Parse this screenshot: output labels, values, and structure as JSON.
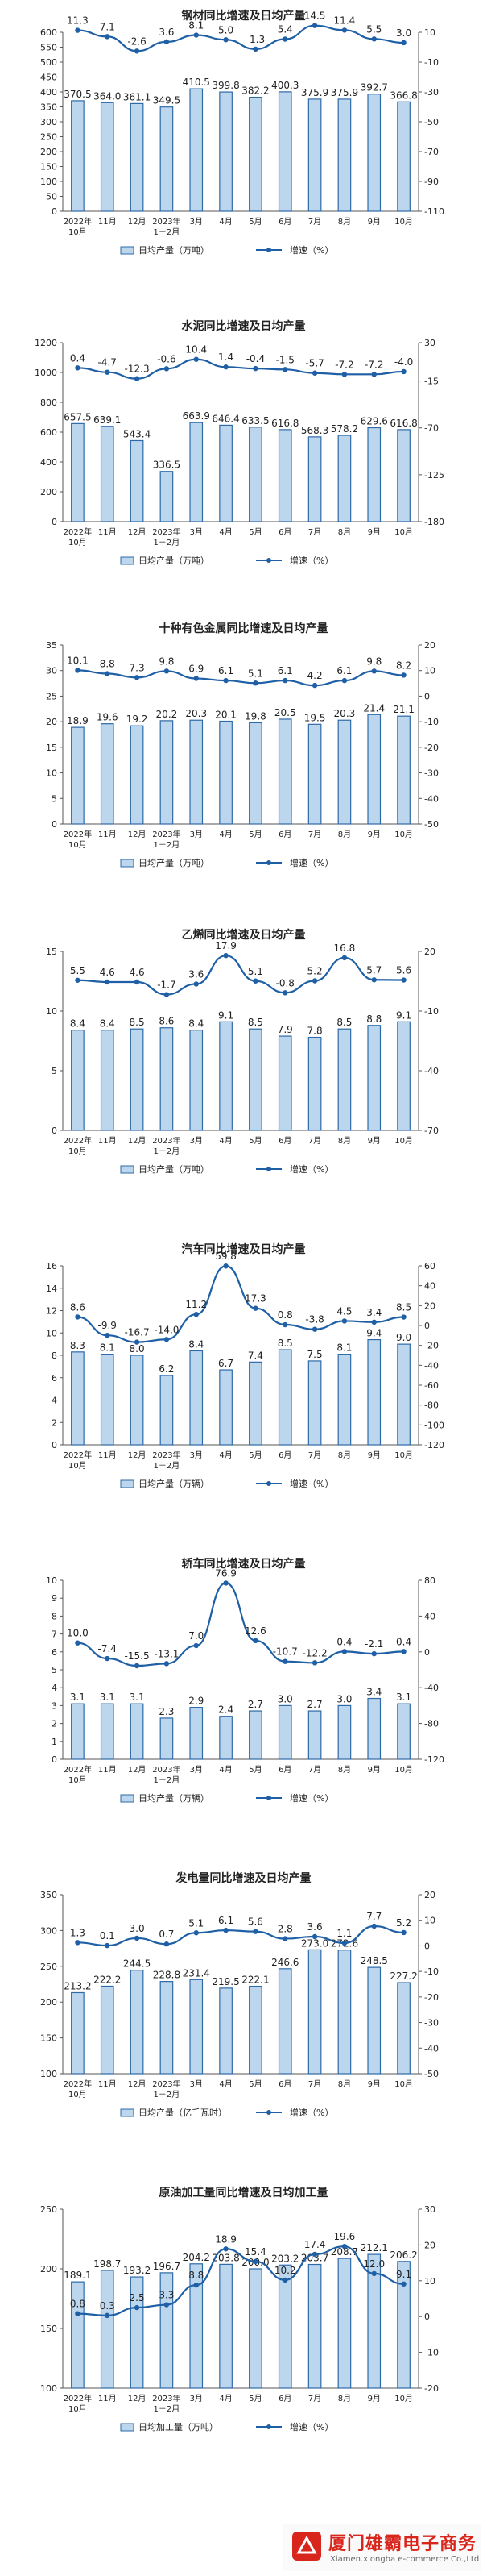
{
  "chart_data": [
    {
      "type": "bar",
      "title": "钢材同比增速及日均产量",
      "categories": [
        "2022年\n10月",
        "11月",
        "12月",
        "2023年\n1－2月",
        "3月",
        "4月",
        "5月",
        "6月",
        "7月",
        "8月",
        "9月",
        "10月"
      ],
      "series": [
        {
          "name": "日均产量（万吨）",
          "type": "bar",
          "axis": "left",
          "values": [
            370.5,
            364.0,
            361.1,
            349.5,
            410.5,
            399.8,
            382.2,
            400.3,
            375.9,
            375.9,
            392.7,
            366.8
          ],
          "labels": [
            "370.5",
            "364.0",
            "361.1",
            "349.5",
            "410.5",
            "399.8",
            "382.2",
            "400.3",
            "375.9",
            "375.9",
            "392.7",
            "366.8"
          ]
        },
        {
          "name": "增速（%）",
          "type": "line",
          "axis": "right",
          "values": [
            11.3,
            7.1,
            -2.6,
            3.6,
            8.1,
            5.0,
            -1.3,
            5.4,
            14.5,
            11.4,
            5.5,
            3.0
          ],
          "labels": [
            "11.3",
            "7.1",
            "-2.6",
            "3.6",
            "8.1",
            "5.0",
            "-1.3",
            "5.4",
            "14.5",
            "11.4",
            "5.5",
            "3.0"
          ]
        }
      ],
      "ylim": [
        0,
        600
      ],
      "ylim_right": [
        -110,
        10
      ],
      "yticks": [
        "0",
        "50",
        "100",
        "150",
        "200",
        "250",
        "300",
        "350",
        "400",
        "450",
        "500",
        "550",
        "600"
      ],
      "yticks_right": [
        "-110",
        "-90",
        "-70",
        "-50",
        "-30",
        "-10",
        "10"
      ],
      "grid": false,
      "legend": "bottom"
    },
    {
      "type": "bar",
      "title": "水泥同比增速及日均产量",
      "categories": [
        "2022年\n10月",
        "11月",
        "12月",
        "2023年\n1－2月",
        "3月",
        "4月",
        "5月",
        "6月",
        "7月",
        "8月",
        "9月",
        "10月"
      ],
      "series": [
        {
          "name": "日均产量（万吨）",
          "type": "bar",
          "axis": "left",
          "values": [
            657.5,
            639.1,
            543.4,
            336.5,
            663.9,
            646.4,
            633.5,
            616.8,
            568.3,
            578.2,
            629.6,
            616.8
          ],
          "labels": [
            "657.5",
            "639.1",
            "543.4",
            "336.5",
            "663.9",
            "646.4",
            "633.5",
            "616.8",
            "568.3",
            "578.2",
            "629.6",
            "616.8"
          ]
        },
        {
          "name": "增速（%）",
          "type": "line",
          "axis": "right",
          "values": [
            0.4,
            -4.7,
            -12.3,
            -0.6,
            10.4,
            1.4,
            -0.4,
            -1.5,
            -5.7,
            -7.2,
            -7.2,
            -4.0
          ],
          "labels": [
            "0.4",
            "-4.7",
            "-12.3",
            "-0.6",
            "10.4",
            "1.4",
            "-0.4",
            "-1.5",
            "-5.7",
            "-7.2",
            "-7.2",
            "-4.0"
          ]
        }
      ],
      "ylim": [
        0,
        1200
      ],
      "ylim_right": [
        -180,
        30
      ],
      "yticks": [
        "0",
        "200",
        "400",
        "600",
        "800",
        "1000",
        "1200"
      ],
      "yticks_right": [
        "-180",
        "-125",
        "-70",
        "-15",
        "30"
      ],
      "grid": false,
      "legend": "bottom"
    },
    {
      "type": "bar",
      "title": "十种有色金属同比增速及日均产量",
      "categories": [
        "2022年\n10月",
        "11月",
        "12月",
        "2023年\n1－2月",
        "3月",
        "4月",
        "5月",
        "6月",
        "7月",
        "8月",
        "9月",
        "10月"
      ],
      "series": [
        {
          "name": "日均产量（万吨）",
          "type": "bar",
          "axis": "left",
          "values": [
            18.9,
            19.6,
            19.2,
            20.2,
            20.3,
            20.1,
            19.8,
            20.5,
            19.5,
            20.3,
            21.4,
            21.1
          ],
          "labels": [
            "18.9",
            "19.6",
            "19.2",
            "20.2",
            "20.3",
            "20.1",
            "19.8",
            "20.5",
            "19.5",
            "20.3",
            "21.4",
            "21.1"
          ]
        },
        {
          "name": "增速（%）",
          "type": "line",
          "axis": "right",
          "values": [
            10.1,
            8.8,
            7.3,
            9.8,
            6.9,
            6.1,
            5.1,
            6.1,
            4.2,
            6.1,
            9.8,
            8.2
          ],
          "labels": [
            "10.1",
            "8.8",
            "7.3",
            "9.8",
            "6.9",
            "6.1",
            "5.1",
            "6.1",
            "4.2",
            "6.1",
            "9.8",
            "8.2"
          ]
        }
      ],
      "ylim": [
        0,
        35
      ],
      "ylim_right": [
        -50,
        20
      ],
      "yticks": [
        "0",
        "5",
        "10",
        "15",
        "20",
        "25",
        "30",
        "35"
      ],
      "yticks_right": [
        "-50",
        "-40",
        "-30",
        "-20",
        "-10",
        "0",
        "10",
        "20"
      ],
      "grid": false,
      "legend": "bottom"
    },
    {
      "type": "bar",
      "title": "乙烯同比增速及日均产量",
      "categories": [
        "2022年\n10月",
        "11月",
        "12月",
        "2023年\n1－2月",
        "3月",
        "4月",
        "5月",
        "6月",
        "7月",
        "8月",
        "9月",
        "10月"
      ],
      "series": [
        {
          "name": "日均产量（万吨）",
          "type": "bar",
          "axis": "left",
          "values": [
            8.4,
            8.4,
            8.5,
            8.6,
            8.4,
            9.1,
            8.5,
            7.9,
            7.8,
            8.5,
            8.8,
            9.1
          ],
          "labels": [
            "8.4",
            "8.4",
            "8.5",
            "8.6",
            "8.4",
            "9.1",
            "8.5",
            "7.9",
            "7.8",
            "8.5",
            "8.8",
            "9.1"
          ]
        },
        {
          "name": "增速（%）",
          "type": "line",
          "axis": "right",
          "values": [
            5.5,
            4.6,
            4.6,
            -1.7,
            3.6,
            17.9,
            5.1,
            -0.8,
            5.2,
            16.8,
            5.7,
            5.6
          ],
          "labels": [
            "5.5",
            "4.6",
            "4.6",
            "-1.7",
            "3.6",
            "17.9",
            "5.1",
            "-0.8",
            "5.2",
            "16.8",
            "5.7",
            "5.6"
          ]
        }
      ],
      "ylim": [
        0,
        15
      ],
      "ylim_right": [
        -70,
        20
      ],
      "yticks": [
        "0",
        "5",
        "10",
        "15"
      ],
      "yticks_right": [
        "-70",
        "-40",
        "-10",
        "20"
      ],
      "grid": false,
      "legend": "bottom"
    },
    {
      "type": "bar",
      "title": "汽车同比增速及日均产量",
      "categories": [
        "2022年\n10月",
        "11月",
        "12月",
        "2023年\n1－2月",
        "3月",
        "4月",
        "5月",
        "6月",
        "7月",
        "8月",
        "9月",
        "10月"
      ],
      "series": [
        {
          "name": "日均产量（万辆）",
          "type": "bar",
          "axis": "left",
          "values": [
            8.3,
            8.1,
            8.0,
            6.2,
            8.4,
            6.7,
            7.4,
            8.5,
            7.5,
            8.1,
            9.4,
            9.0
          ],
          "labels": [
            "8.3",
            "8.1",
            "8.0",
            "6.2",
            "8.4",
            "6.7",
            "7.4",
            "8.5",
            "7.5",
            "8.1",
            "9.4",
            "9.0"
          ]
        },
        {
          "name": "增速（%）",
          "type": "line",
          "axis": "right",
          "values": [
            8.6,
            -9.9,
            -16.7,
            -14.0,
            11.2,
            59.8,
            17.3,
            0.8,
            -3.8,
            4.5,
            3.4,
            8.5
          ],
          "labels": [
            "8.6",
            "-9.9",
            "-16.7",
            "-14.0",
            "11.2",
            "59.8",
            "17.3",
            "0.8",
            "-3.8",
            "4.5",
            "3.4",
            "8.5"
          ]
        }
      ],
      "ylim": [
        0,
        16
      ],
      "ylim_right": [
        -120,
        60
      ],
      "yticks": [
        "0",
        "2",
        "4",
        "6",
        "8",
        "10",
        "12",
        "14",
        "16"
      ],
      "yticks_right": [
        "-120",
        "-100",
        "-80",
        "-60",
        "-40",
        "-20",
        "0",
        "20",
        "40",
        "60"
      ],
      "grid": false,
      "legend": "bottom"
    },
    {
      "type": "bar",
      "title": "轿车同比增速及日均产量",
      "categories": [
        "2022年\n10月",
        "11月",
        "12月",
        "2023年\n1－2月",
        "3月",
        "4月",
        "5月",
        "6月",
        "7月",
        "8月",
        "9月",
        "10月"
      ],
      "series": [
        {
          "name": "日均产量（万辆）",
          "type": "bar",
          "axis": "left",
          "values": [
            3.1,
            3.1,
            3.1,
            2.3,
            2.9,
            2.4,
            2.7,
            3.0,
            2.7,
            3.0,
            3.4,
            3.1
          ],
          "labels": [
            "3.1",
            "3.1",
            "3.1",
            "2.3",
            "2.9",
            "2.4",
            "2.7",
            "3.0",
            "2.7",
            "3.0",
            "3.4",
            "3.1"
          ]
        },
        {
          "name": "增速（%）",
          "type": "line",
          "axis": "right",
          "values": [
            10.0,
            -7.4,
            -15.5,
            -13.1,
            7.0,
            76.9,
            12.6,
            -10.7,
            -12.2,
            0.4,
            -2.1,
            0.4
          ],
          "labels": [
            "10.0",
            "-7.4",
            "-15.5",
            "-13.1",
            "7.0",
            "76.9",
            "12.6",
            "-10.7",
            "-12.2",
            "0.4",
            "-2.1",
            "0.4"
          ]
        }
      ],
      "ylim": [
        0,
        10
      ],
      "ylim_right": [
        -120,
        80
      ],
      "yticks": [
        "0",
        "1",
        "2",
        "3",
        "4",
        "5",
        "6",
        "7",
        "8",
        "9",
        "10"
      ],
      "yticks_right": [
        "-120",
        "-80",
        "-40",
        "0",
        "40",
        "80"
      ],
      "grid": false,
      "legend": "bottom"
    },
    {
      "type": "bar",
      "title": "发电量同比增速及日均产量",
      "categories": [
        "2022年\n10月",
        "11月",
        "12月",
        "2023年\n1－2月",
        "3月",
        "4月",
        "5月",
        "6月",
        "7月",
        "8月",
        "9月",
        "10月"
      ],
      "series": [
        {
          "name": "日均产量（亿千瓦时）",
          "type": "bar",
          "axis": "left",
          "values": [
            213.2,
            222.2,
            244.5,
            228.8,
            231.4,
            219.5,
            222.1,
            246.6,
            273.0,
            272.6,
            248.5,
            227.2
          ],
          "labels": [
            "213.2",
            "222.2",
            "244.5",
            "228.8",
            "231.4",
            "219.5",
            "222.1",
            "246.6",
            "273.0",
            "272.6",
            "248.5",
            "227.2"
          ]
        },
        {
          "name": "增速（%）",
          "type": "line",
          "axis": "right",
          "values": [
            1.3,
            0.1,
            3.0,
            0.7,
            5.1,
            6.1,
            5.6,
            2.8,
            3.6,
            1.1,
            7.7,
            5.2
          ],
          "labels": [
            "1.3",
            "0.1",
            "3.0",
            "0.7",
            "5.1",
            "6.1",
            "5.6",
            "2.8",
            "3.6",
            "1.1",
            "7.7",
            "5.2"
          ]
        }
      ],
      "ylim": [
        100,
        350
      ],
      "ylim_right": [
        -50,
        20
      ],
      "yticks": [
        "100",
        "150",
        "200",
        "250",
        "300",
        "350"
      ],
      "yticks_right": [
        "-50",
        "-40",
        "-30",
        "-20",
        "-10",
        "0",
        "10",
        "20"
      ],
      "grid": false,
      "legend": "bottom"
    },
    {
      "type": "bar",
      "title": "原油加工量同比增速及日均加工量",
      "categories": [
        "2022年\n10月",
        "11月",
        "12月",
        "2023年\n1－2月",
        "3月",
        "4月",
        "5月",
        "6月",
        "7月",
        "8月",
        "9月",
        "10月"
      ],
      "series": [
        {
          "name": "日均加工量（万吨）",
          "type": "bar",
          "axis": "left",
          "values": [
            189.1,
            198.7,
            193.2,
            196.7,
            204.2,
            203.8,
            200.0,
            203.2,
            203.7,
            208.7,
            212.1,
            206.2
          ],
          "labels": [
            "189.1",
            "198.7",
            "193.2",
            "196.7",
            "204.2",
            "203.8",
            "200.0",
            "203.2",
            "203.7",
            "208.7",
            "212.1",
            "206.2"
          ]
        },
        {
          "name": "增速（%）",
          "type": "line",
          "axis": "right",
          "values": [
            0.8,
            0.3,
            2.5,
            3.3,
            8.8,
            18.9,
            15.4,
            10.2,
            17.4,
            19.6,
            12.0,
            9.1
          ],
          "labels": [
            "0.8",
            "0.3",
            "2.5",
            "3.3",
            "8.8",
            "18.9",
            "15.4",
            "10.2",
            "17.4",
            "19.6",
            "12.0",
            "9.1"
          ]
        }
      ],
      "ylim": [
        100,
        250
      ],
      "ylim_right": [
        -20,
        30
      ],
      "yticks": [
        "100",
        "150",
        "200",
        "250"
      ],
      "yticks_right": [
        "-20",
        "-10",
        "0",
        "10",
        "20",
        "30"
      ],
      "grid": false,
      "legend": "bottom"
    }
  ],
  "colors": {
    "bar_fill": "#bcd6ee",
    "bar_stroke": "#2e6aa8",
    "line": "#1f5fa6",
    "text": "#222222",
    "axis": "#555555"
  },
  "watermark": {
    "name": "厦门雄霸电子商务",
    "url": "Xiamen.xiongba e-commerce Co.,Ltd"
  }
}
